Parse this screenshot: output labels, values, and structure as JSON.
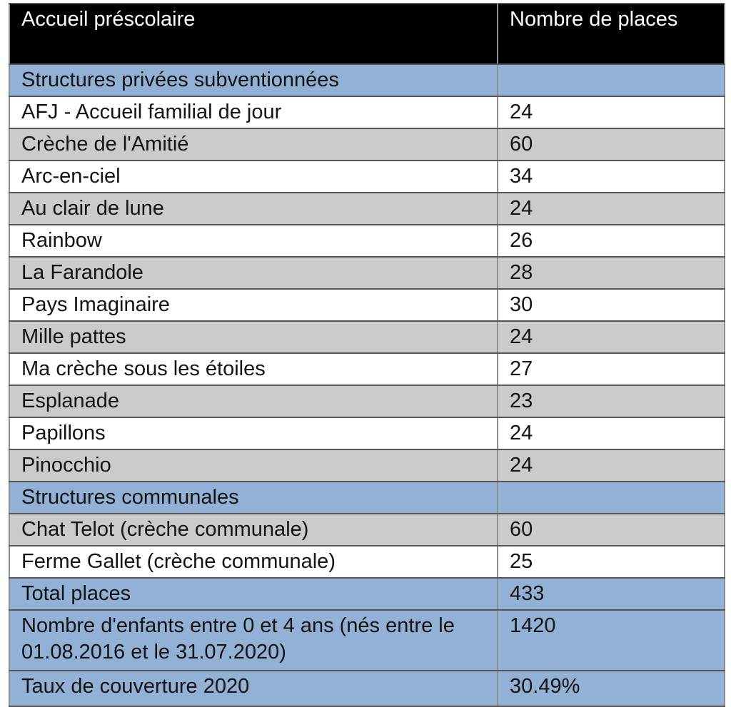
{
  "table": {
    "header": {
      "structure": "Accueil préscolaire",
      "places": "Nombre de places"
    },
    "rows": [
      {
        "kind": "section",
        "bg": "blue",
        "label": "Structures privées subventionnées",
        "value": ""
      },
      {
        "kind": "data",
        "bg": "white",
        "label": "AFJ - Accueil familial de jour",
        "value": "24"
      },
      {
        "kind": "data",
        "bg": "gray",
        "label": "Crèche de l'Amitié",
        "value": "60"
      },
      {
        "kind": "data",
        "bg": "white",
        "label": "Arc-en-ciel",
        "value": "34"
      },
      {
        "kind": "data",
        "bg": "gray",
        "label": "Au clair de lune",
        "value": "24"
      },
      {
        "kind": "data",
        "bg": "white",
        "label": "Rainbow",
        "value": "26"
      },
      {
        "kind": "data",
        "bg": "gray",
        "label": "La Farandole",
        "value": "28"
      },
      {
        "kind": "data",
        "bg": "white",
        "label": "Pays Imaginaire",
        "value": "30"
      },
      {
        "kind": "data",
        "bg": "gray",
        "label": "Mille pattes",
        "value": "24"
      },
      {
        "kind": "data",
        "bg": "white",
        "label": "Ma crèche sous les étoiles",
        "value": "27"
      },
      {
        "kind": "data",
        "bg": "gray",
        "label": "Esplanade",
        "value": "23"
      },
      {
        "kind": "data",
        "bg": "white",
        "label": "Papillons",
        "value": "24"
      },
      {
        "kind": "data",
        "bg": "gray",
        "label": "Pinocchio",
        "value": "24"
      },
      {
        "kind": "section",
        "bg": "blue",
        "label": "Structures communales",
        "value": ""
      },
      {
        "kind": "data",
        "bg": "gray",
        "label": "Chat Telot (crèche communale)",
        "value": "60"
      },
      {
        "kind": "data",
        "bg": "white",
        "label": "Ferme Gallet (crèche communale)",
        "value": "25"
      },
      {
        "kind": "summary",
        "bg": "blue",
        "label": "Total places",
        "value": "433",
        "total": true
      },
      {
        "kind": "summary",
        "bg": "blue",
        "label": "Nombre d'enfants entre 0 et 4 ans (nés entre le 01.08.2016 et le 31.07.2020)",
        "value": "1420",
        "tall": true
      },
      {
        "kind": "summary",
        "bg": "blue",
        "label": "Taux de couverture 2020",
        "value": "30.49%"
      }
    ]
  },
  "colors": {
    "header_bg": "#000000",
    "header_text": "#ffffff",
    "section_row_bg": "#93b1d7",
    "alt_row_bg": "#cbcbcb",
    "row_bg": "#ffffff"
  }
}
